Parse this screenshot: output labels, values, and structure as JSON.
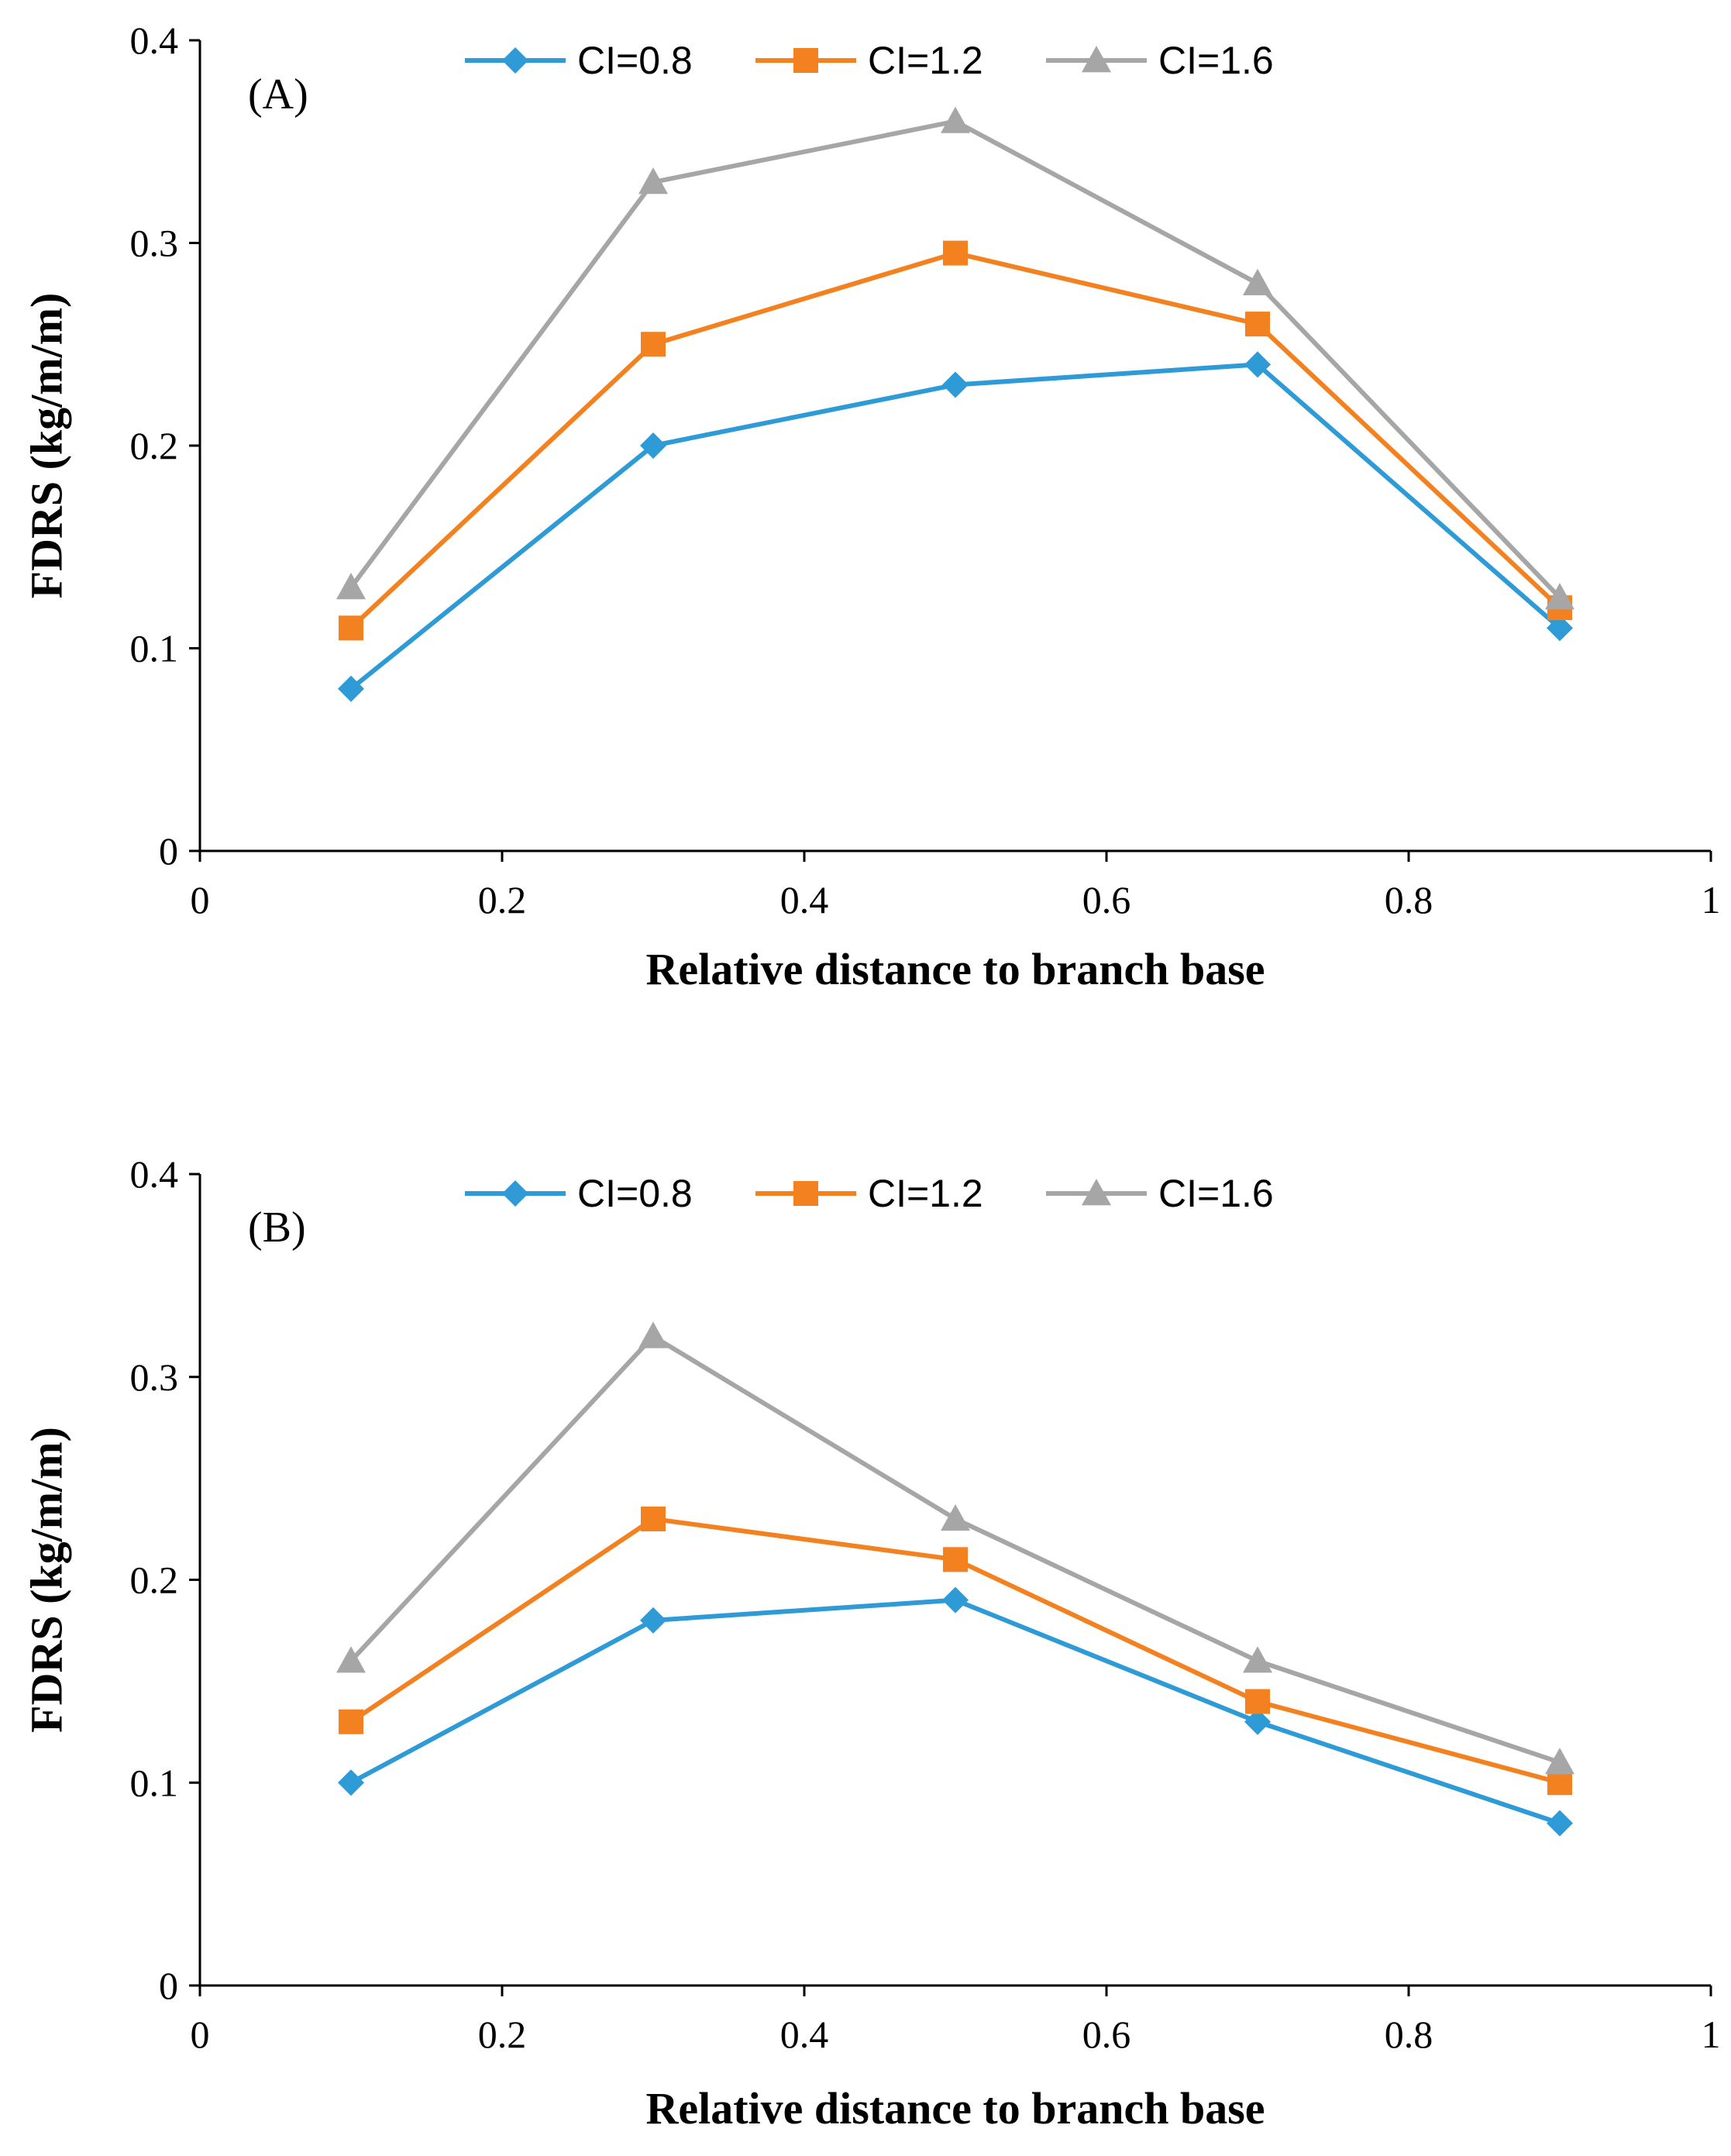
{
  "chart_data": [
    {
      "type": "line",
      "panel_label": "(A)",
      "xlabel": "Relative distance to branch base",
      "ylabel": "FDRS (kg/m/m)",
      "xlim": [
        0,
        1
      ],
      "ylim": [
        0,
        0.4
      ],
      "x_ticks": [
        "0",
        "0.2",
        "0.4",
        "0.6",
        "0.8",
        "1"
      ],
      "y_ticks": [
        "0",
        "0.1",
        "0.2",
        "0.3",
        "0.4"
      ],
      "grid": false,
      "legend_position": "top",
      "x": [
        0.1,
        0.3,
        0.5,
        0.7,
        0.9
      ],
      "series": [
        {
          "name": "CI=0.8",
          "color": "#2E9BD6",
          "marker": "diamond",
          "values": [
            0.08,
            0.2,
            0.23,
            0.24,
            0.11
          ]
        },
        {
          "name": "CI=1.2",
          "color": "#F4811F",
          "marker": "square",
          "values": [
            0.11,
            0.25,
            0.295,
            0.26,
            0.12
          ]
        },
        {
          "name": "CI=1.6",
          "color": "#A6A6A6",
          "marker": "triangle",
          "values": [
            0.13,
            0.33,
            0.36,
            0.28,
            0.125
          ]
        }
      ]
    },
    {
      "type": "line",
      "panel_label": "(B)",
      "xlabel": "Relative distance to branch base",
      "ylabel": "FDRS (kg/m/m)",
      "xlim": [
        0,
        1
      ],
      "ylim": [
        0,
        0.4
      ],
      "x_ticks": [
        "0",
        "0.2",
        "0.4",
        "0.6",
        "0.8",
        "1"
      ],
      "y_ticks": [
        "0",
        "0.1",
        "0.2",
        "0.3",
        "0.4"
      ],
      "grid": false,
      "legend_position": "top",
      "x": [
        0.1,
        0.3,
        0.5,
        0.7,
        0.9
      ],
      "series": [
        {
          "name": "CI=0.8",
          "color": "#2E9BD6",
          "marker": "diamond",
          "values": [
            0.1,
            0.18,
            0.19,
            0.13,
            0.08
          ]
        },
        {
          "name": "CI=1.2",
          "color": "#F4811F",
          "marker": "square",
          "values": [
            0.13,
            0.23,
            0.21,
            0.14,
            0.1
          ]
        },
        {
          "name": "CI=1.6",
          "color": "#A6A6A6",
          "marker": "triangle",
          "values": [
            0.16,
            0.32,
            0.23,
            0.16,
            0.11
          ]
        }
      ]
    }
  ]
}
